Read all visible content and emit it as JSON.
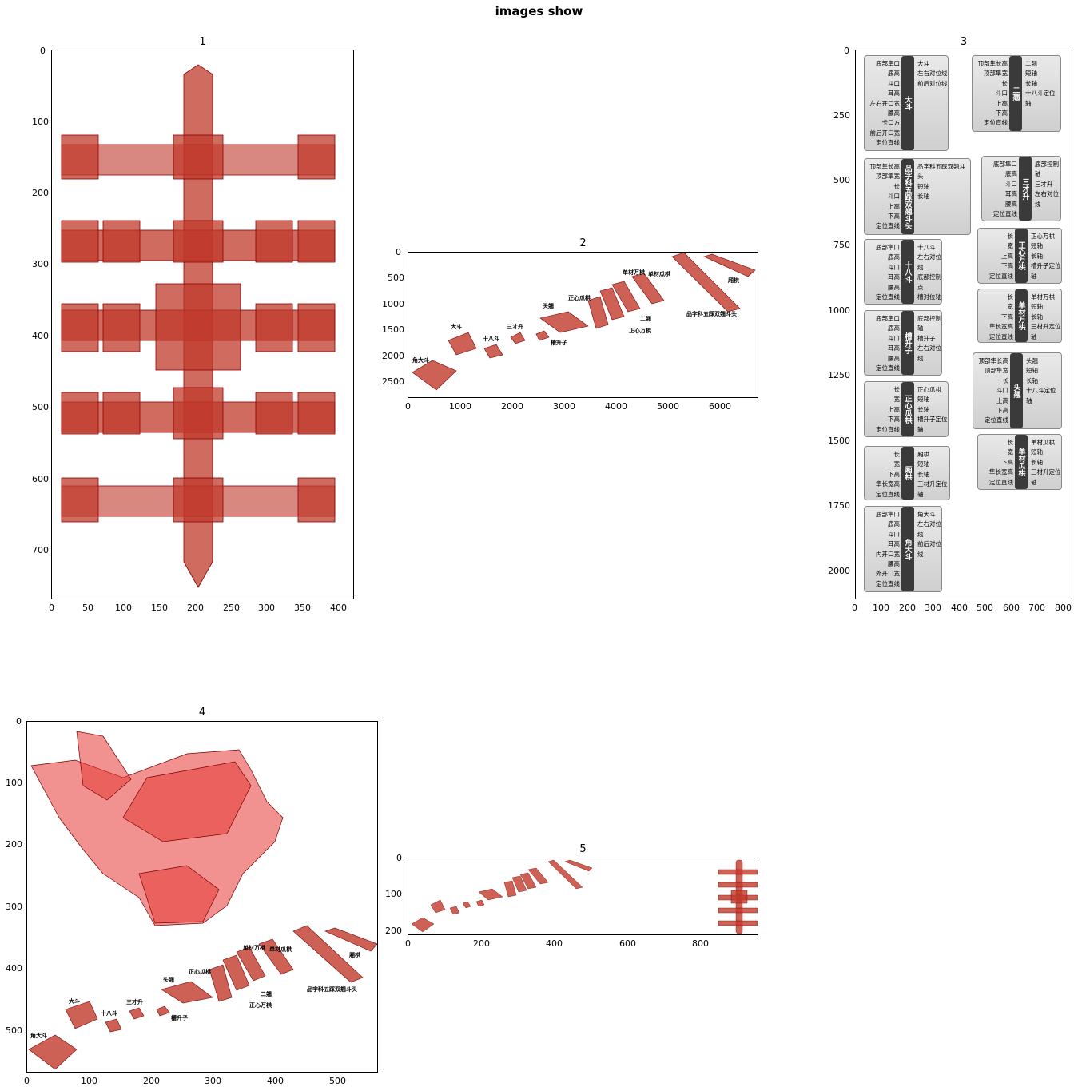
{
  "suptitle": "images show",
  "panels": [
    {
      "title": "1",
      "xticks": [
        "0",
        "50",
        "100",
        "150",
        "200",
        "250",
        "300",
        "350",
        "400"
      ],
      "yticks": [
        "0",
        "100",
        "200",
        "300",
        "400",
        "500",
        "600",
        "700"
      ]
    },
    {
      "title": "2",
      "xticks": [
        "0",
        "1000",
        "2000",
        "3000",
        "4000",
        "5000",
        "6000"
      ],
      "yticks": [
        "0",
        "500",
        "1000",
        "1500",
        "2000",
        "2500"
      ],
      "labels": [
        "角大斗",
        "大斗",
        "十八斗",
        "三才升",
        "槽升子",
        "头翘",
        "正心瓜栱",
        "单材万栱",
        "单材瓜栱",
        "二翘",
        "正心万栱",
        "品字科五踩双翘斗头",
        "厢栱"
      ]
    },
    {
      "title": "3",
      "xticks": [
        "0",
        "100",
        "200",
        "300",
        "400",
        "500",
        "600",
        "700",
        "800"
      ],
      "yticks": [
        "0",
        "250",
        "500",
        "750",
        "1000",
        "1250",
        "1500",
        "1750",
        "2000"
      ],
      "nodes": [
        {
          "name": "大斗",
          "ins": [
            "底部隼口",
            "底高",
            "斗口",
            "耳高",
            "左右开口宽",
            "腰高",
            "卡口方",
            "前后开口宽",
            "定位直线"
          ],
          "outs": [
            "大斗",
            "左右对位线",
            "前后对位线"
          ]
        },
        {
          "name": "二翘",
          "ins": [
            "顶部隼长高",
            "顶部隼宽",
            "长",
            "斗口",
            "上高",
            "下高",
            "定位直线"
          ],
          "outs": [
            "二翘",
            "短轴",
            "长轴",
            "十八斗定位轴"
          ]
        },
        {
          "name": "品字科五踩双翘斗头",
          "ins": [
            "顶部隼长高",
            "顶部隼宽",
            "长",
            "斗口",
            "上高",
            "下高",
            "定位直线"
          ],
          "outs": [
            "品字科五踩双翘斗头",
            "短轴",
            "长轴"
          ]
        },
        {
          "name": "三才升",
          "ins": [
            "底部隼口",
            "底高",
            "斗口",
            "耳高",
            "腰高",
            "定位直线"
          ],
          "outs": [
            "底部控制轴",
            "三才升",
            "左右对位线"
          ]
        },
        {
          "name": "十八斗",
          "ins": [
            "底部隼口",
            "底高",
            "斗口",
            "耳高",
            "腰高",
            "定位直线"
          ],
          "outs": [
            "十八斗",
            "左右对位线",
            "底部控制点",
            "槽对位轴"
          ]
        },
        {
          "name": "正心万栱",
          "ins": [
            "长",
            "宽",
            "上高",
            "下高",
            "定位直线"
          ],
          "outs": [
            "正心万栱",
            "短轴",
            "长轴",
            "槽升子定位轴"
          ]
        },
        {
          "name": "单材万栱",
          "ins": [
            "长",
            "宽",
            "下高",
            "隼长宽高",
            "定位直线"
          ],
          "outs": [
            "单材万栱",
            "短轴",
            "长轴",
            "三材升定位轴"
          ]
        },
        {
          "name": "槽升子",
          "ins": [
            "底部隼口",
            "底高",
            "斗口",
            "耳高",
            "腰高",
            "定位直线"
          ],
          "outs": [
            "底部控制轴",
            "槽升子",
            "左右对位线"
          ]
        },
        {
          "name": "头翘",
          "ins": [
            "顶部隼长高",
            "顶部隼宽",
            "长",
            "斗口",
            "上高",
            "下高",
            "定位直线"
          ],
          "outs": [
            "头翘",
            "短轴",
            "长轴",
            "十八斗定位轴"
          ]
        },
        {
          "name": "正心瓜栱",
          "ins": [
            "长",
            "宽",
            "上高",
            "下高",
            "定位直线"
          ],
          "outs": [
            "正心瓜栱",
            "短轴",
            "长轴",
            "槽升子定位轴"
          ]
        },
        {
          "name": "单材瓜栱",
          "ins": [
            "长",
            "宽",
            "下高",
            "隼长宽高",
            "定位直线"
          ],
          "outs": [
            "单材瓜栱",
            "短轴",
            "长轴",
            "三材升定位轴"
          ]
        },
        {
          "name": "厢栱",
          "ins": [
            "长",
            "宽",
            "下高",
            "隼长宽高",
            "定位直线"
          ],
          "outs": [
            "厢栱",
            "短轴",
            "长轴",
            "三材升定位轴"
          ]
        },
        {
          "name": "角大斗",
          "ins": [
            "底部隼口",
            "底高",
            "斗口",
            "耳高",
            "内开口宽",
            "腰高",
            "外开口宽",
            "定位直线"
          ],
          "outs": [
            "角大斗",
            "左右对位线",
            "前后对位线"
          ]
        }
      ]
    },
    {
      "title": "4",
      "xticks": [
        "0",
        "100",
        "200",
        "300",
        "400",
        "500"
      ],
      "yticks": [
        "0",
        "100",
        "200",
        "300",
        "400",
        "500"
      ],
      "labels": [
        "角大斗",
        "大斗",
        "十八斗",
        "三才升",
        "槽升子",
        "头翘",
        "正心瓜栱",
        "单材万栱",
        "单材瓜栱",
        "二翘",
        "正心万栱",
        "品字科五踩双翘斗头",
        "厢栱"
      ]
    },
    {
      "title": "5",
      "xticks": [
        "0",
        "200",
        "400",
        "600",
        "800"
      ],
      "yticks": [
        "0",
        "100",
        "200"
      ]
    }
  ],
  "colors": {
    "red": "#b22222",
    "fill": "#c0392b"
  }
}
